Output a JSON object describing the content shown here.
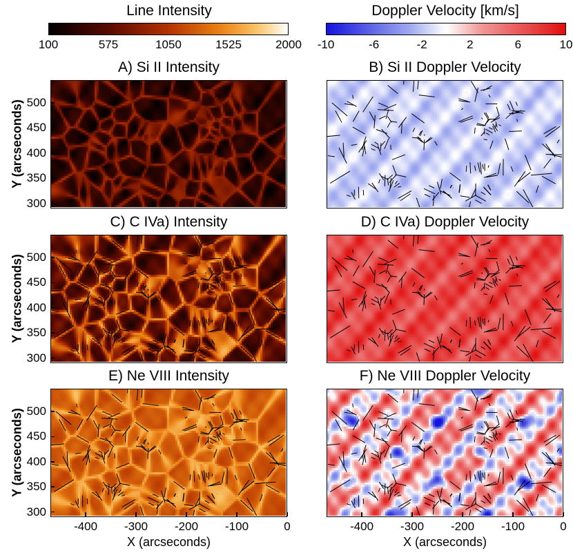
{
  "chart_data": {
    "type": "heatmap",
    "colorbars": [
      {
        "title": "Line Intensity",
        "ticks": [
          "100",
          "575",
          "1050",
          "1525",
          "2000"
        ],
        "range": [
          100,
          2000
        ],
        "colormap": "heat"
      },
      {
        "title": "Doppler Velocity [km/s]",
        "ticks": [
          "-10",
          "-6",
          "-2",
          "2",
          "6",
          "10"
        ],
        "range": [
          -10,
          10
        ],
        "colormap": "blue-white-red"
      }
    ],
    "panels": [
      {
        "title": "A) Si II Intensity",
        "colormap": "heat",
        "level": 0.18,
        "variance": 0.35,
        "ylabel": "Y (arcseconds)"
      },
      {
        "title": "B) Si II Doppler Velocity",
        "colormap": "blue-white-red",
        "level": 0.42,
        "variance": 0.12
      },
      {
        "title": "C) C IVa) Intensity",
        "colormap": "heat",
        "level": 0.35,
        "variance": 0.55,
        "ylabel": "Y (arcseconds)"
      },
      {
        "title": "D) C IVa) Doppler Velocity",
        "colormap": "blue-white-red",
        "level": 0.85,
        "variance": 0.18
      },
      {
        "title": "E) Ne VIII Intensity",
        "colormap": "heat",
        "level": 0.65,
        "variance": 0.25,
        "ylabel": "Y (arcseconds)"
      },
      {
        "title": "F) Ne VIII Doppler Velocity",
        "colormap": "blue-white-red",
        "level": 0.6,
        "variance": 0.45
      }
    ],
    "xlabel": "X (arcseconds)",
    "ylabel": "Y (arcseconds)",
    "xticks": [
      "-400",
      "-300",
      "-200",
      "-100",
      "0"
    ],
    "yticks": [
      "500",
      "450",
      "400",
      "350",
      "300"
    ],
    "xlim": [
      -470,
      0
    ],
    "ylim": [
      290,
      545
    ]
  },
  "colors": {
    "heat_dark": "#000000",
    "heat_mid": "#b43200",
    "heat_light": "#ffffff",
    "vel_blue": "#1010e0",
    "vel_white": "#ffffff",
    "vel_red": "#e01010"
  }
}
